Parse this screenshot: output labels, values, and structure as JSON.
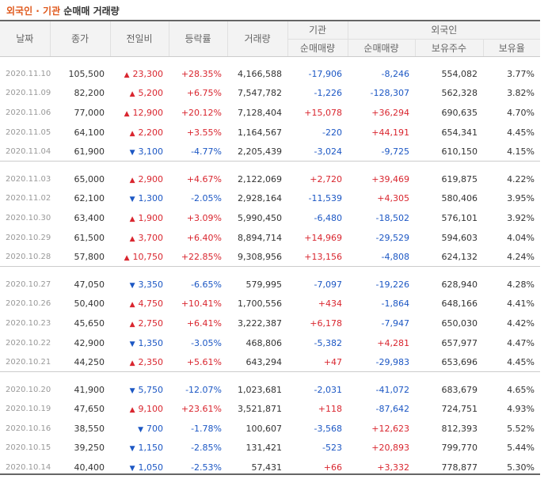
{
  "title": {
    "part1": "외국인 · 기관",
    "part2": " 순매매 거래량"
  },
  "headers": {
    "date": "날짜",
    "close": "종가",
    "change": "전일비",
    "rate": "등락률",
    "volume": "거래량",
    "inst": "기관",
    "inst_net": "순매매량",
    "foreign": "외국인",
    "foreign_net": "순매매량",
    "foreign_hold": "보유주수",
    "foreign_ratio": "보유율"
  },
  "colors": {
    "up": "#d9262f",
    "down": "#1c57c4",
    "title_accent": "#e05a1e"
  },
  "groups": [
    [
      {
        "date": "2020.11.10",
        "close": "105,500",
        "dir": "up",
        "change": "23,300",
        "rate": "+28.35%",
        "volume": "4,166,588",
        "inst": "-17,906",
        "foreign": "-8,246",
        "hold": "554,082",
        "ratio": "3.77%"
      },
      {
        "date": "2020.11.09",
        "close": "82,200",
        "dir": "up",
        "change": "5,200",
        "rate": "+6.75%",
        "volume": "7,547,782",
        "inst": "-1,226",
        "foreign": "-128,307",
        "hold": "562,328",
        "ratio": "3.82%"
      },
      {
        "date": "2020.11.06",
        "close": "77,000",
        "dir": "up",
        "change": "12,900",
        "rate": "+20.12%",
        "volume": "7,128,404",
        "inst": "+15,078",
        "foreign": "+36,294",
        "hold": "690,635",
        "ratio": "4.70%"
      },
      {
        "date": "2020.11.05",
        "close": "64,100",
        "dir": "up",
        "change": "2,200",
        "rate": "+3.55%",
        "volume": "1,164,567",
        "inst": "-220",
        "foreign": "+44,191",
        "hold": "654,341",
        "ratio": "4.45%"
      },
      {
        "date": "2020.11.04",
        "close": "61,900",
        "dir": "down",
        "change": "3,100",
        "rate": "-4.77%",
        "volume": "2,205,439",
        "inst": "-3,024",
        "foreign": "-9,725",
        "hold": "610,150",
        "ratio": "4.15%"
      }
    ],
    [
      {
        "date": "2020.11.03",
        "close": "65,000",
        "dir": "up",
        "change": "2,900",
        "rate": "+4.67%",
        "volume": "2,122,069",
        "inst": "+2,720",
        "foreign": "+39,469",
        "hold": "619,875",
        "ratio": "4.22%"
      },
      {
        "date": "2020.11.02",
        "close": "62,100",
        "dir": "down",
        "change": "1,300",
        "rate": "-2.05%",
        "volume": "2,928,164",
        "inst": "-11,539",
        "foreign": "+4,305",
        "hold": "580,406",
        "ratio": "3.95%"
      },
      {
        "date": "2020.10.30",
        "close": "63,400",
        "dir": "up",
        "change": "1,900",
        "rate": "+3.09%",
        "volume": "5,990,450",
        "inst": "-6,480",
        "foreign": "-18,502",
        "hold": "576,101",
        "ratio": "3.92%"
      },
      {
        "date": "2020.10.29",
        "close": "61,500",
        "dir": "up",
        "change": "3,700",
        "rate": "+6.40%",
        "volume": "8,894,714",
        "inst": "+14,969",
        "foreign": "-29,529",
        "hold": "594,603",
        "ratio": "4.04%"
      },
      {
        "date": "2020.10.28",
        "close": "57,800",
        "dir": "up",
        "change": "10,750",
        "rate": "+22.85%",
        "volume": "9,308,956",
        "inst": "+13,156",
        "foreign": "-4,808",
        "hold": "624,132",
        "ratio": "4.24%"
      }
    ],
    [
      {
        "date": "2020.10.27",
        "close": "47,050",
        "dir": "down",
        "change": "3,350",
        "rate": "-6.65%",
        "volume": "579,995",
        "inst": "-7,097",
        "foreign": "-19,226",
        "hold": "628,940",
        "ratio": "4.28%"
      },
      {
        "date": "2020.10.26",
        "close": "50,400",
        "dir": "up",
        "change": "4,750",
        "rate": "+10.41%",
        "volume": "1,700,556",
        "inst": "+434",
        "foreign": "-1,864",
        "hold": "648,166",
        "ratio": "4.41%"
      },
      {
        "date": "2020.10.23",
        "close": "45,650",
        "dir": "up",
        "change": "2,750",
        "rate": "+6.41%",
        "volume": "3,222,387",
        "inst": "+6,178",
        "foreign": "-7,947",
        "hold": "650,030",
        "ratio": "4.42%"
      },
      {
        "date": "2020.10.22",
        "close": "42,900",
        "dir": "down",
        "change": "1,350",
        "rate": "-3.05%",
        "volume": "468,806",
        "inst": "-5,382",
        "foreign": "+4,281",
        "hold": "657,977",
        "ratio": "4.47%"
      },
      {
        "date": "2020.10.21",
        "close": "44,250",
        "dir": "up",
        "change": "2,350",
        "rate": "+5.61%",
        "volume": "643,294",
        "inst": "+47",
        "foreign": "-29,983",
        "hold": "653,696",
        "ratio": "4.45%"
      }
    ],
    [
      {
        "date": "2020.10.20",
        "close": "41,900",
        "dir": "down",
        "change": "5,750",
        "rate": "-12.07%",
        "volume": "1,023,681",
        "inst": "-2,031",
        "foreign": "-41,072",
        "hold": "683,679",
        "ratio": "4.65%"
      },
      {
        "date": "2020.10.19",
        "close": "47,650",
        "dir": "up",
        "change": "9,100",
        "rate": "+23.61%",
        "volume": "3,521,871",
        "inst": "+118",
        "foreign": "-87,642",
        "hold": "724,751",
        "ratio": "4.93%"
      },
      {
        "date": "2020.10.16",
        "close": "38,550",
        "dir": "down",
        "change": "700",
        "rate": "-1.78%",
        "volume": "100,607",
        "inst": "-3,568",
        "foreign": "+12,623",
        "hold": "812,393",
        "ratio": "5.52%"
      },
      {
        "date": "2020.10.15",
        "close": "39,250",
        "dir": "down",
        "change": "1,150",
        "rate": "-2.85%",
        "volume": "131,421",
        "inst": "-523",
        "foreign": "+20,893",
        "hold": "799,770",
        "ratio": "5.44%"
      },
      {
        "date": "2020.10.14",
        "close": "40,400",
        "dir": "down",
        "change": "1,050",
        "rate": "-2.53%",
        "volume": "57,431",
        "inst": "+66",
        "foreign": "+3,332",
        "hold": "778,877",
        "ratio": "5.30%"
      }
    ]
  ]
}
